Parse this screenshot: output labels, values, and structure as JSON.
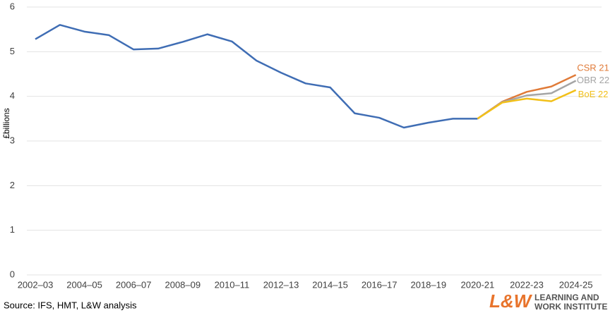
{
  "chart_data": {
    "type": "line",
    "y_label": "£billions",
    "categories": [
      "2002–03",
      null,
      "2004–05",
      null,
      "2006–07",
      null,
      "2008–09",
      null,
      "2010–11",
      null,
      "2012–13",
      null,
      "2014–15",
      null,
      "2016–17",
      null,
      "2018–19",
      null,
      "2020-21",
      null,
      "2022-23",
      null,
      "2024-25"
    ],
    "series": [
      {
        "name": null,
        "color": "#3f6db4",
        "values": [
          5.28,
          5.6,
          5.45,
          5.37,
          5.05,
          5.07,
          5.22,
          5.39,
          5.23,
          4.8,
          4.53,
          4.29,
          4.2,
          3.62,
          3.52,
          3.3,
          3.41,
          3.5,
          3.5,
          null,
          null,
          null,
          null
        ]
      },
      {
        "name": "CSR 21",
        "color": "#e07b39",
        "values": [
          null,
          null,
          null,
          null,
          null,
          null,
          null,
          null,
          null,
          null,
          null,
          null,
          null,
          null,
          null,
          null,
          null,
          null,
          3.5,
          3.88,
          4.1,
          4.22,
          4.48
        ]
      },
      {
        "name": "OBR 22",
        "color": "#a5a5a5",
        "values": [
          null,
          null,
          null,
          null,
          null,
          null,
          null,
          null,
          null,
          null,
          null,
          null,
          null,
          null,
          null,
          null,
          null,
          null,
          3.5,
          3.87,
          4.02,
          4.07,
          4.35
        ]
      },
      {
        "name": "BoE 22",
        "color": "#f2c019",
        "values": [
          null,
          null,
          null,
          null,
          null,
          null,
          null,
          null,
          null,
          null,
          null,
          null,
          null,
          null,
          null,
          null,
          null,
          null,
          3.5,
          3.86,
          3.95,
          3.89,
          4.14
        ]
      }
    ],
    "ylim": [
      0,
      6
    ],
    "yticks": [
      0,
      1,
      2,
      3,
      4,
      5,
      6
    ],
    "grid": true
  },
  "source": "Source: IFS, HMT, L&W analysis",
  "logo": {
    "mark": "L&W",
    "lines": [
      "LEARNING AND",
      "WORK INSTITUTE"
    ]
  }
}
